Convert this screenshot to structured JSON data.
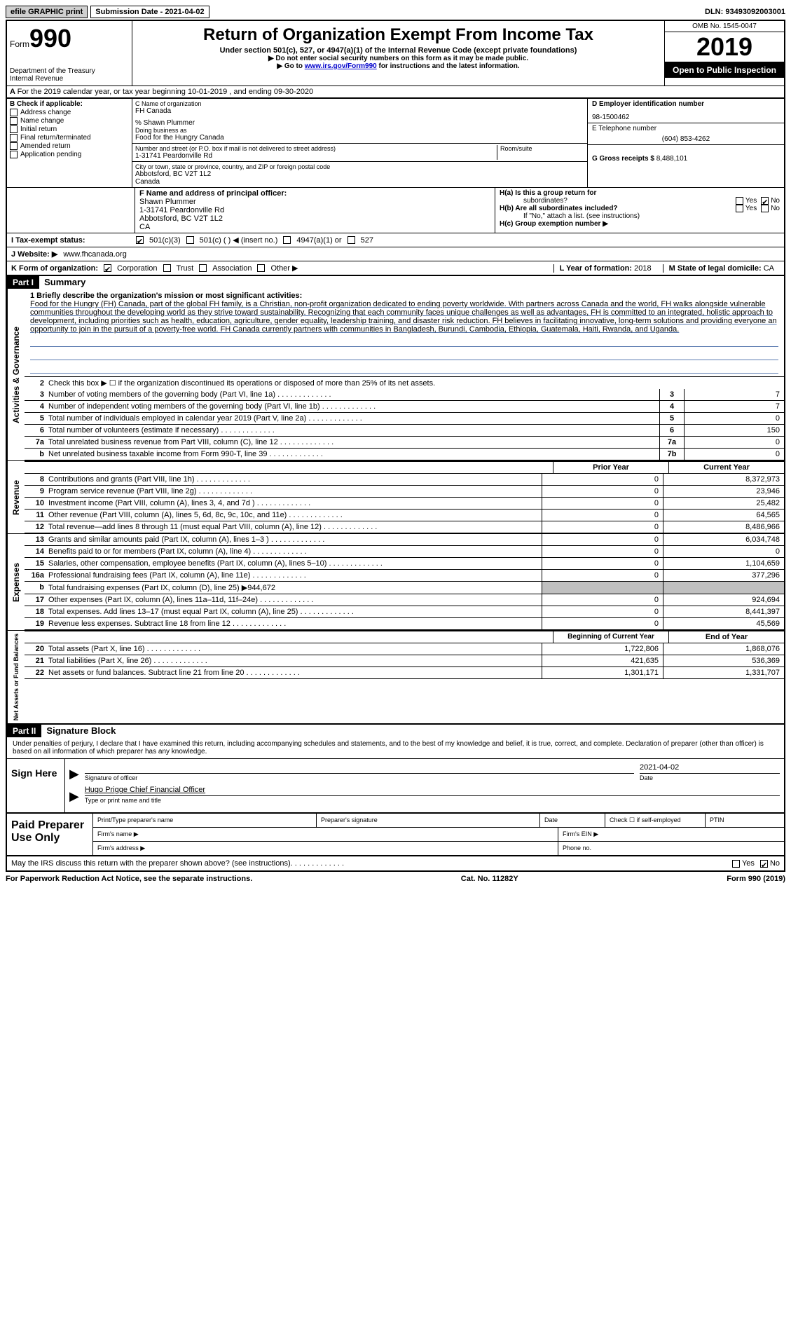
{
  "topbar": {
    "efile": "efile GRAPHIC print",
    "submission": "Submission Date - 2021-04-02",
    "dln": "DLN: 93493092003001"
  },
  "header": {
    "form_label": "Form",
    "form_number": "990",
    "dept": "Department of the Treasury",
    "irs": "Internal Revenue",
    "title": "Return of Organization Exempt From Income Tax",
    "subtitle": "Under section 501(c), 527, or 4947(a)(1) of the Internal Revenue Code (except private foundations)",
    "note1": "▶ Do not enter social security numbers on this form as it may be made public.",
    "note2_pre": "▶ Go to ",
    "note2_link": "www.irs.gov/Form990",
    "note2_post": " for instructions and the latest information.",
    "omb": "OMB No. 1545-0047",
    "year": "2019",
    "open": "Open to Public Inspection"
  },
  "a_line": "For the 2019 calendar year, or tax year beginning 10-01-2019   , and ending 09-30-2020",
  "b": {
    "label": "B Check if applicable:",
    "items": [
      "Address change",
      "Name change",
      "Initial return",
      "Final return/terminated",
      "Amended return",
      "Application pending"
    ]
  },
  "c": {
    "name_label": "C Name of organization",
    "name": "FH Canada",
    "care_of": "% Shawn Plummer",
    "dba_label": "Doing business as",
    "dba": "Food for the Hungry Canada",
    "street_label": "Number and street (or P.O. box if mail is not delivered to street address)",
    "street": "1-31741 Peardonville Rd",
    "room_label": "Room/suite",
    "city_label": "City or town, state or province, country, and ZIP or foreign postal code",
    "city": "Abbotsford, BC  V2T 1L2",
    "country": "Canada"
  },
  "d": {
    "label": "D Employer identification number",
    "ein": "98-1500462"
  },
  "e": {
    "label": "E Telephone number",
    "phone": "(604) 853-4262"
  },
  "g": {
    "label": "G Gross receipts $",
    "amount": "8,488,101"
  },
  "f": {
    "label": "F  Name and address of principal officer:",
    "name": "Shawn Plummer",
    "addr1": "1-31741 Peardonville Rd",
    "addr2": "Abbotsford, BC  V2T 1L2",
    "addr3": "CA"
  },
  "h": {
    "ha_label": "H(a)  Is this a group return for",
    "ha_sub": "subordinates?",
    "hb_label": "H(b)  Are all subordinates included?",
    "hb_note": "If \"No,\" attach a list. (see instructions)",
    "hc_label": "H(c)  Group exemption number ▶",
    "yes": "Yes",
    "no": "No"
  },
  "i": {
    "label": "I     Tax-exempt status:",
    "opt1": "501(c)(3)",
    "opt2": "501(c) (   ) ◀ (insert no.)",
    "opt3": "4947(a)(1) or",
    "opt4": "527"
  },
  "j": {
    "label": "J    Website: ▶",
    "url": "www.fhcanada.org"
  },
  "k": {
    "label": "K Form of organization:",
    "corp": "Corporation",
    "trust": "Trust",
    "assoc": "Association",
    "other": "Other ▶"
  },
  "l": {
    "label": "L Year of formation:",
    "val": "2018"
  },
  "m": {
    "label": "M State of legal domicile:",
    "val": "CA"
  },
  "part1": {
    "header": "Part I",
    "title": "Summary",
    "q1_label": "1  Briefly describe the organization's mission or most significant activities:",
    "mission": "Food for the Hungry (FH) Canada, part of the global FH family, is a Christian, non-profit organization dedicated to ending poverty worldwide. With partners across Canada and the world, FH walks alongside vulnerable communities throughout the developing world as they strive toward sustainability. Recognizing that each community faces unique challenges as well as advantages, FH is committed to an integrated, holistic approach to development, including priorities such as health, education, agriculture, gender equality, leadership training, and disaster risk reduction. FH believes in facilitating innovative, long-term solutions and providing everyone an opportunity to join in the pursuit of a poverty-free world. FH Canada currently partners with communities in Bangladesh, Burundi, Cambodia, Ethiopia, Guatemala, Haiti, Rwanda, and Uganda.",
    "q2": "Check this box ▶ ☐ if the organization discontinued its operations or disposed of more than 25% of its net assets.",
    "lines": [
      {
        "n": "3",
        "d": "Number of voting members of the governing body (Part VI, line 1a)",
        "box": "3",
        "v": "7"
      },
      {
        "n": "4",
        "d": "Number of independent voting members of the governing body (Part VI, line 1b)",
        "box": "4",
        "v": "7"
      },
      {
        "n": "5",
        "d": "Total number of individuals employed in calendar year 2019 (Part V, line 2a)",
        "box": "5",
        "v": "0"
      },
      {
        "n": "6",
        "d": "Total number of volunteers (estimate if necessary)",
        "box": "6",
        "v": "150"
      },
      {
        "n": "7a",
        "d": "Total unrelated business revenue from Part VIII, column (C), line 12",
        "box": "7a",
        "v": "0"
      },
      {
        "n": "b",
        "d": "Net unrelated business taxable income from Form 990-T, line 39",
        "box": "7b",
        "v": "0"
      }
    ],
    "col_prior": "Prior Year",
    "col_curr": "Current Year",
    "revenue": [
      {
        "n": "8",
        "d": "Contributions and grants (Part VIII, line 1h)",
        "p": "0",
        "c": "8,372,973"
      },
      {
        "n": "9",
        "d": "Program service revenue (Part VIII, line 2g)",
        "p": "0",
        "c": "23,946"
      },
      {
        "n": "10",
        "d": "Investment income (Part VIII, column (A), lines 3, 4, and 7d )",
        "p": "0",
        "c": "25,482"
      },
      {
        "n": "11",
        "d": "Other revenue (Part VIII, column (A), lines 5, 6d, 8c, 9c, 10c, and 11e)",
        "p": "0",
        "c": "64,565"
      },
      {
        "n": "12",
        "d": "Total revenue—add lines 8 through 11 (must equal Part VIII, column (A), line 12)",
        "p": "0",
        "c": "8,486,966"
      }
    ],
    "expenses": [
      {
        "n": "13",
        "d": "Grants and similar amounts paid (Part IX, column (A), lines 1–3 )",
        "p": "0",
        "c": "6,034,748"
      },
      {
        "n": "14",
        "d": "Benefits paid to or for members (Part IX, column (A), line 4)",
        "p": "0",
        "c": "0"
      },
      {
        "n": "15",
        "d": "Salaries, other compensation, employee benefits (Part IX, column (A), lines 5–10)",
        "p": "0",
        "c": "1,104,659"
      },
      {
        "n": "16a",
        "d": "Professional fundraising fees (Part IX, column (A), line 11e)",
        "p": "0",
        "c": "377,296"
      },
      {
        "n": "b",
        "d": "Total fundraising expenses (Part IX, column (D), line 25) ▶944,672",
        "p": "",
        "c": "",
        "shaded": true
      },
      {
        "n": "17",
        "d": "Other expenses (Part IX, column (A), lines 11a–11d, 11f–24e)",
        "p": "0",
        "c": "924,694"
      },
      {
        "n": "18",
        "d": "Total expenses. Add lines 13–17 (must equal Part IX, column (A), line 25)",
        "p": "0",
        "c": "8,441,397"
      },
      {
        "n": "19",
        "d": "Revenue less expenses. Subtract line 18 from line 12",
        "p": "0",
        "c": "45,569"
      }
    ],
    "col_boy": "Beginning of Current Year",
    "col_eoy": "End of Year",
    "netassets": [
      {
        "n": "20",
        "d": "Total assets (Part X, line 16)",
        "p": "1,722,806",
        "c": "1,868,076"
      },
      {
        "n": "21",
        "d": "Total liabilities (Part X, line 26)",
        "p": "421,635",
        "c": "536,369"
      },
      {
        "n": "22",
        "d": "Net assets or fund balances. Subtract line 21 from line 20",
        "p": "1,301,171",
        "c": "1,331,707"
      }
    ],
    "vlabels": {
      "ag": "Activities & Governance",
      "rev": "Revenue",
      "exp": "Expenses",
      "na": "Net Assets or Fund Balances"
    }
  },
  "part2": {
    "header": "Part II",
    "title": "Signature Block",
    "decl": "Under penalties of perjury, I declare that I have examined this return, including accompanying schedules and statements, and to the best of my knowledge and belief, it is true, correct, and complete. Declaration of preparer (other than officer) is based on all information of which preparer has any knowledge.",
    "sign_here": "Sign Here",
    "sig_officer_label": "Signature of officer",
    "date_label": "Date",
    "date_val": "2021-04-02",
    "name_title": "Hugo Prigge  Chief Financial Officer",
    "name_title_label": "Type or print name and title",
    "paid": "Paid Preparer Use Only",
    "prep_name": "Print/Type preparer's name",
    "prep_sig": "Preparer's signature",
    "prep_date": "Date",
    "prep_self": "Check ☐ if self-employed",
    "ptin": "PTIN",
    "firm_name": "Firm's name   ▶",
    "firm_ein": "Firm's EIN ▶",
    "firm_addr": "Firm's address ▶",
    "phone": "Phone no.",
    "discuss": "May the IRS discuss this return with the preparer shown above? (see instructions)"
  },
  "footer": {
    "pra": "For Paperwork Reduction Act Notice, see the separate instructions.",
    "cat": "Cat. No. 11282Y",
    "form": "Form 990 (2019)"
  }
}
